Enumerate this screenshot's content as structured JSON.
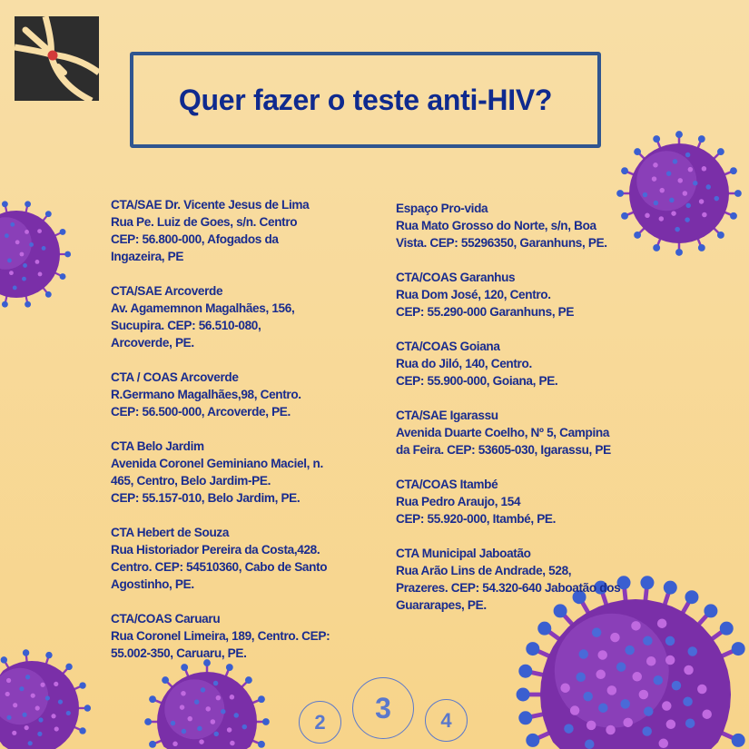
{
  "colors": {
    "background": "#f8dea6",
    "text": "#1a2c8e",
    "title": "#0f2a8e",
    "frame": "#2f5590",
    "virus": "#7a2fa8",
    "virus_tips": "#3a5fd0",
    "pagination": "#5a78cc"
  },
  "logo": {
    "icon": "crossed-lines-logo"
  },
  "title": "Quer fazer o teste anti-HIV?",
  "left_column": [
    {
      "lines": [
        "CTA/SAE Dr. Vicente Jesus de Lima",
        "Rua Pe. Luiz de Goes, s/n. Centro",
        "CEP: 56.800-000, Afogados da",
        "Ingazeira, PE"
      ]
    },
    {
      "lines": [
        "CTA/SAE Arcoverde",
        "Av. Agamemnon Magalhães, 156,",
        "Sucupira. CEP: 56.510-080,",
        "Arcoverde, PE."
      ]
    },
    {
      "lines": [
        "CTA / COAS Arcoverde",
        "R.Germano Magalhães,98, Centro.",
        "CEP: 56.500-000, Arcoverde, PE."
      ]
    },
    {
      "lines": [
        "CTA Belo Jardim",
        "Avenida Coronel Geminiano Maciel, n.",
        "465, Centro, Belo Jardim-PE.",
        "CEP: 55.157-010, Belo Jardim, PE."
      ]
    },
    {
      "lines": [
        "CTA Hebert de Souza",
        "Rua Historiador Pereira da Costa,428.",
        "Centro. CEP: 54510360, Cabo de Santo",
        "Agostinho, PE."
      ]
    },
    {
      "lines": [
        "CTA/COAS Caruaru",
        "Rua Coronel Limeira, 189, Centro. CEP:",
        "55.002-350, Caruaru, PE."
      ]
    }
  ],
  "right_column": [
    {
      "lines": [
        "Espaço Pro-vida",
        "Rua Mato Grosso do Norte, s/n, Boa",
        "Vista. CEP: 55296350, Garanhuns, PE."
      ]
    },
    {
      "lines": [
        "CTA/COAS Garanhus",
        "Rua Dom José, 120, Centro.",
        "CEP: 55.290-000 Garanhuns, PE"
      ]
    },
    {
      "lines": [
        "CTA/COAS Goiana",
        "Rua do Jiló, 140, Centro.",
        "CEP: 55.900-000, Goiana, PE."
      ]
    },
    {
      "lines": [
        "CTA/SAE Igarassu",
        "Avenida Duarte Coelho, Nº 5,  Campina",
        "da Feira. CEP: 53605-030, Igarassu, PE"
      ]
    },
    {
      "lines": [
        "CTA/COAS Itambé",
        "Rua Pedro Araujo, 154",
        "CEP: 55.920-000, Itambé, PE."
      ]
    },
    {
      "lines": [
        "CTA Municipal Jaboatão",
        "Rua Arão Lins de Andrade, 528,",
        "Prazeres. CEP: 54.320-640 Jaboatão dos",
        "Guararapes, PE."
      ]
    }
  ],
  "pagination": {
    "prev": "2",
    "current": "3",
    "next": "4"
  }
}
